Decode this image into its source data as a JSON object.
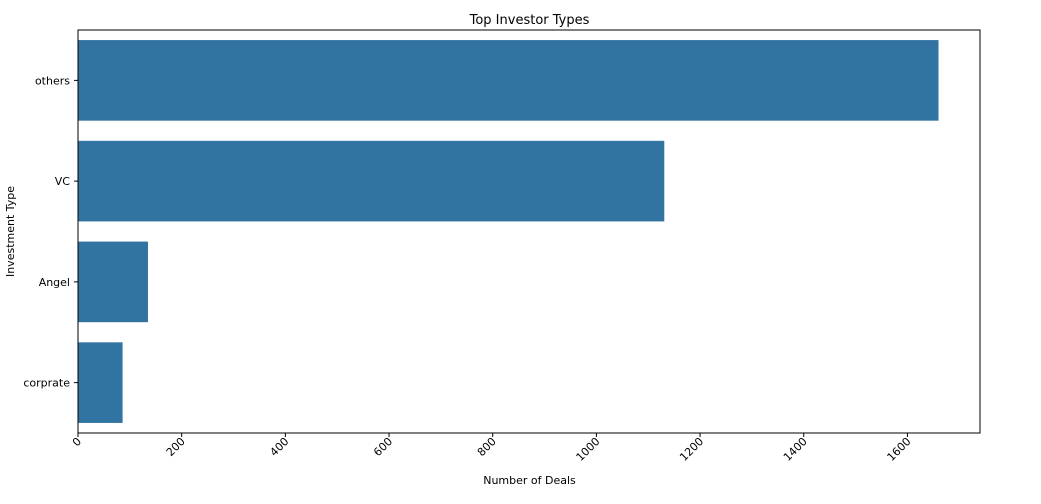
{
  "chart_data": {
    "type": "bar",
    "orientation": "horizontal",
    "title": "Top Investor Types",
    "xlabel": "Number of Deals",
    "ylabel": "Investment Type",
    "categories": [
      "others",
      "VC",
      "Angel",
      "corprate"
    ],
    "values": [
      1660,
      1131,
      135,
      86
    ],
    "xlim": [
      0,
      1740
    ],
    "xticks": [
      0,
      200,
      400,
      600,
      800,
      1000,
      1200,
      1400,
      1600
    ],
    "xtick_labels": [
      "0",
      "200",
      "400",
      "600",
      "800",
      "1000",
      "1200",
      "1400",
      "1600"
    ],
    "xtick_rotation": -45,
    "bar_color": "#3274a1",
    "grid": false,
    "legend": "none"
  }
}
